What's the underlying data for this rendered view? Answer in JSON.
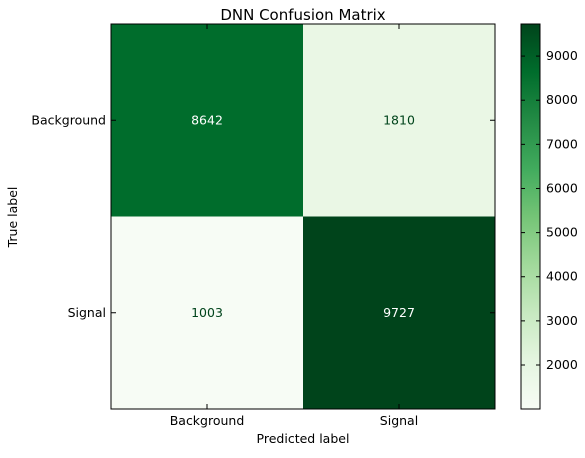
{
  "chart_data": {
    "type": "heatmap",
    "title": "DNN Confusion Matrix",
    "xlabel": "Predicted label",
    "ylabel": "True label",
    "x_categories": [
      "Background",
      "Signal"
    ],
    "y_categories": [
      "Background",
      "Signal"
    ],
    "values": [
      [
        8642,
        1810
      ],
      [
        1003,
        9727
      ]
    ],
    "colormap": "Greens",
    "colorbar": {
      "min": 1003,
      "max": 9727,
      "ticks": [
        2000,
        3000,
        4000,
        5000,
        6000,
        7000,
        8000,
        9000
      ]
    },
    "colors": {
      "dark_text": "#00441b",
      "light_text": "#ffffff"
    }
  }
}
